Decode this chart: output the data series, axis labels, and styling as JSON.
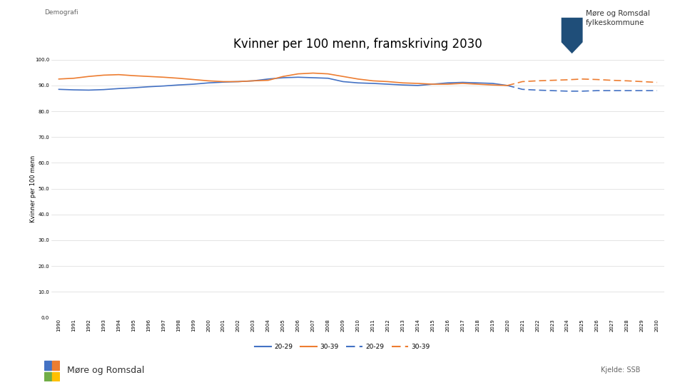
{
  "title": "Kvinner per 100 menn, framskriving 2030",
  "ylabel": "Kvinner per 100 menn",
  "demografi_label": "Demografi",
  "source_label": "Kjelde: SSB",
  "footer_label": "Møre og Romsdal",
  "ylim": [
    0,
    100
  ],
  "yticks": [
    0.0,
    10.0,
    20.0,
    30.0,
    40.0,
    50.0,
    60.0,
    70.0,
    80.0,
    90.0,
    100.0
  ],
  "color_blue": "#4472C4",
  "color_orange": "#ED7D31",
  "split_year": 2020,
  "years": [
    1990,
    1991,
    1992,
    1993,
    1994,
    1995,
    1996,
    1997,
    1998,
    1999,
    2000,
    2001,
    2002,
    2003,
    2004,
    2005,
    2006,
    2007,
    2008,
    2009,
    2010,
    2011,
    2012,
    2013,
    2014,
    2015,
    2016,
    2017,
    2018,
    2019,
    2020,
    2021,
    2022,
    2023,
    2024,
    2025,
    2026,
    2027,
    2028,
    2029,
    2030
  ],
  "series_20_29": [
    88.5,
    88.3,
    88.2,
    88.4,
    88.8,
    89.1,
    89.5,
    89.8,
    90.2,
    90.5,
    91.0,
    91.3,
    91.5,
    91.8,
    92.5,
    93.0,
    93.2,
    93.0,
    92.8,
    91.5,
    91.0,
    90.8,
    90.5,
    90.2,
    90.0,
    90.5,
    91.0,
    91.2,
    91.0,
    90.8,
    90.0,
    88.5,
    88.2,
    88.0,
    87.8,
    87.8,
    88.0,
    88.0,
    88.0,
    88.0,
    88.0
  ],
  "series_30_39": [
    92.5,
    92.8,
    93.5,
    94.0,
    94.2,
    93.8,
    93.5,
    93.2,
    92.8,
    92.3,
    91.8,
    91.5,
    91.5,
    91.8,
    92.0,
    93.5,
    94.5,
    94.8,
    94.5,
    93.5,
    92.5,
    91.8,
    91.5,
    91.0,
    90.8,
    90.5,
    90.5,
    90.8,
    90.5,
    90.2,
    90.0,
    91.5,
    91.8,
    92.0,
    92.2,
    92.5,
    92.3,
    92.0,
    91.8,
    91.5,
    91.2
  ],
  "legend_entries": [
    "20-29",
    "30-39",
    "20-29",
    "30-39"
  ],
  "title_fontsize": 12,
  "tick_fontsize": 5,
  "ylabel_fontsize": 6,
  "background_color": "#FFFFFF",
  "grid_color": "#D9D9D9",
  "logo_colors": [
    "#4472C4",
    "#ED7D31",
    "#70AD47",
    "#FFC000"
  ]
}
